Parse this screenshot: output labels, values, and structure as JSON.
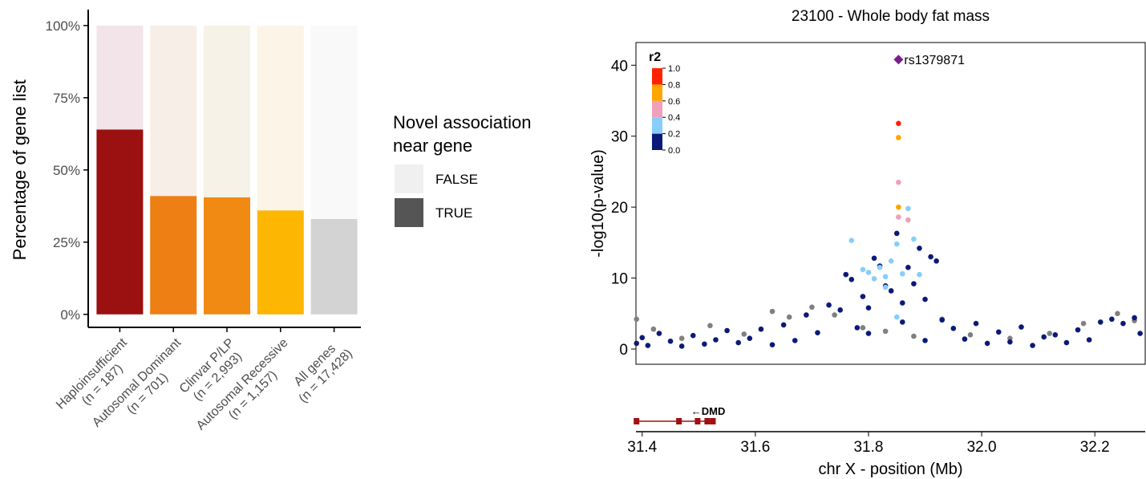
{
  "chart_data": [
    {
      "type": "stacked_bar",
      "ylabel": "Percentage of gene list",
      "categories": [
        "Haploinsufficient\n(n = 187)",
        "Autosomal Dominant\n(n = 701)",
        "Clinvar P/LP\n(n = 2,993)",
        "Autosomal Recessive\n(n = 1,157)",
        "All genes\n(n = 17,428)"
      ],
      "series": [
        {
          "name": "FALSE",
          "color": "#f0f0f0",
          "colors": [
            "#f3e4e9",
            "#f8eee8",
            "#f6f2e8",
            "#fdf4e8",
            "#f9f9f9"
          ],
          "values": [
            36,
            59,
            59.5,
            64,
            67
          ]
        },
        {
          "name": "TRUE",
          "color": "#555555",
          "colors": [
            "#9b1010",
            "#ee7f14",
            "#f08a12",
            "#fdb602",
            "#d3d3d3"
          ],
          "values": [
            64,
            41,
            40.5,
            36,
            33
          ]
        }
      ],
      "ylim": [
        -4.5,
        105.5
      ],
      "yticks": [
        {
          "value": 0,
          "label": "0%"
        },
        {
          "value": 25,
          "label": "25%"
        },
        {
          "value": 50,
          "label": "50%"
        },
        {
          "value": 75,
          "label": "75%"
        },
        {
          "value": 100,
          "label": "100%"
        }
      ],
      "legend_title": "Novel association\nnear gene",
      "legend": "right"
    },
    {
      "type": "scatter",
      "title": "23100 - Whole body fat mass",
      "xlabel": "chr X - position (Mb)",
      "ylabel": "-log10(p-value)",
      "xlim": [
        31.389,
        32.289
      ],
      "ylim": [
        -2.15,
        43.2
      ],
      "xticks": [
        31.4,
        31.6,
        31.8,
        {
          "value": 32.0,
          "label": "32.0"
        },
        32.2
      ],
      "yticks": [
        0,
        10,
        20,
        30,
        40
      ],
      "series": [
        {
          "color": "#808080",
          "x": [
            31.39,
            31.42,
            31.47,
            31.52,
            31.58,
            31.63,
            31.66,
            31.7,
            31.74,
            31.79,
            31.83,
            31.88,
            31.93,
            31.98,
            32.05,
            32.12,
            32.18,
            32.24,
            32.27
          ],
          "y": [
            4.2,
            2.8,
            1.5,
            3.3,
            2.1,
            5.3,
            4.5,
            5.9,
            4.8,
            3.0,
            2.5,
            1.8,
            4.2,
            2.0,
            1.5,
            2.2,
            3.6,
            5.0,
            4.0
          ]
        },
        {
          "color": "#0b1a78",
          "x": [
            31.39,
            31.4,
            31.41,
            31.43,
            31.45,
            31.47,
            31.49,
            31.51,
            31.53,
            31.55,
            31.57,
            31.59,
            31.61,
            31.63,
            31.65,
            31.67,
            31.69,
            31.71,
            31.73,
            31.75,
            31.77,
            31.79,
            31.81,
            31.83,
            31.85,
            31.87,
            31.89,
            31.91,
            31.93,
            31.95,
            31.97,
            31.99,
            32.01,
            32.03,
            32.05,
            32.07,
            32.09,
            32.11,
            32.13,
            32.15,
            32.17,
            32.19,
            32.21,
            32.23,
            32.25,
            32.27,
            32.28,
            31.76,
            31.78,
            31.8,
            31.82,
            31.84,
            31.86,
            31.88,
            31.9,
            31.92,
            31.8,
            31.86,
            31.9
          ],
          "y": [
            0.8,
            1.6,
            0.5,
            2.2,
            1.1,
            0.4,
            1.9,
            0.7,
            1.3,
            2.6,
            0.9,
            1.5,
            2.8,
            0.6,
            3.4,
            1.2,
            4.8,
            2.3,
            6.2,
            5.5,
            9.8,
            7.4,
            12.8,
            8.9,
            16.3,
            11.5,
            14.2,
            13.0,
            4.1,
            2.9,
            1.4,
            3.6,
            0.8,
            2.4,
            1.0,
            3.1,
            0.5,
            1.7,
            2.0,
            0.9,
            2.7,
            1.3,
            3.8,
            4.2,
            3.6,
            4.4,
            2.2,
            10.5,
            3.0,
            5.8,
            11.7,
            8.2,
            6.5,
            9.2,
            7.0,
            12.4,
            2.2,
            3.8,
            1.2
          ]
        },
        {
          "color": "#87cefa",
          "x": [
            31.77,
            31.79,
            31.8,
            31.81,
            31.82,
            31.83,
            31.84,
            31.85,
            31.86,
            31.87,
            31.88,
            31.89,
            31.85,
            31.83
          ],
          "y": [
            15.3,
            11.2,
            10.8,
            9.9,
            11.5,
            10.2,
            12.4,
            14.8,
            10.6,
            19.8,
            15.5,
            10.5,
            4.5,
            8.7
          ]
        },
        {
          "color": "#f0a0b8",
          "x": [
            31.853,
            31.853,
            31.87
          ],
          "y": [
            23.5,
            18.6,
            18.2
          ]
        },
        {
          "color": "#ffa500",
          "x": [
            31.853,
            31.853
          ],
          "y": [
            29.8,
            20.0
          ]
        },
        {
          "color": "#ff2200",
          "x": [
            31.853
          ],
          "y": [
            31.8
          ]
        }
      ],
      "lead": {
        "label": "rs1379871",
        "x": 31.853,
        "y": 40.8,
        "color": "#7b1c8c"
      },
      "colorbar": {
        "title": "r2",
        "ticks": [
          {
            "value": 0,
            "label": "0.0"
          },
          {
            "value": 0.2,
            "label": "0.2"
          },
          {
            "value": 0.4,
            "label": "0.4"
          },
          {
            "value": 0.6,
            "label": "0.6"
          },
          {
            "value": 0.8,
            "label": "0.8"
          },
          {
            "value": 1,
            "label": "1.0"
          }
        ],
        "colors": [
          "#0b1a78",
          "#87cefa",
          "#f0a0b8",
          "#ffa500",
          "#ff2200"
        ]
      },
      "genes": [
        {
          "label": "←DMD",
          "start": 31.39,
          "end": 31.53,
          "color": "#a01010",
          "exons": [
            31.39,
            31.465,
            31.498,
            31.515,
            31.525
          ]
        }
      ]
    }
  ]
}
